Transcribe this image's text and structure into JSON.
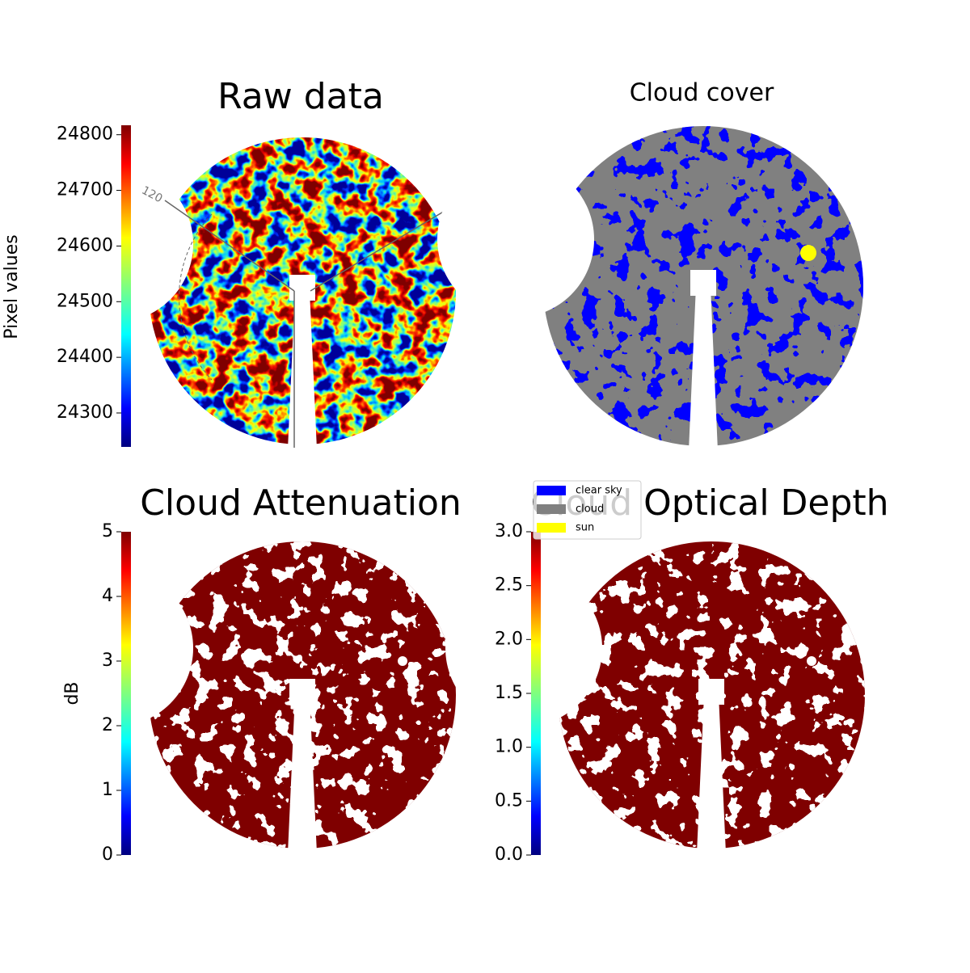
{
  "panels": [
    {
      "title": "Raw data",
      "annotation": "120",
      "colorbar": {
        "label": "Pixel values",
        "lim": [
          24239,
          24817
        ],
        "ticks": [
          24300,
          24400,
          24500,
          24600,
          24700,
          24800
        ]
      }
    },
    {
      "title": "Cloud cover",
      "legend": [
        {
          "label": "clear sky",
          "color": "#0000ff"
        },
        {
          "label": "cloud",
          "color": "#808080"
        },
        {
          "label": "sun",
          "color": "#ffff00"
        }
      ]
    },
    {
      "title": "Cloud Attenuation",
      "colorbar": {
        "label": "dB",
        "lim": [
          0,
          5
        ],
        "ticks": [
          0,
          1,
          2,
          3,
          4,
          5
        ]
      }
    },
    {
      "title": "Cloud Optical Depth",
      "colorbar": {
        "lim": [
          0,
          3
        ],
        "ticks": [
          {
            "value": 0,
            "label": "0.0"
          },
          {
            "value": 0.5,
            "label": "0.5"
          },
          {
            "value": 1,
            "label": "1.0"
          },
          {
            "value": 1.5,
            "label": "1.5"
          },
          {
            "value": 2,
            "label": "2.0"
          },
          {
            "value": 2.5,
            "label": "2.5"
          },
          {
            "value": 3,
            "label": "3.0"
          }
        ]
      }
    }
  ]
}
